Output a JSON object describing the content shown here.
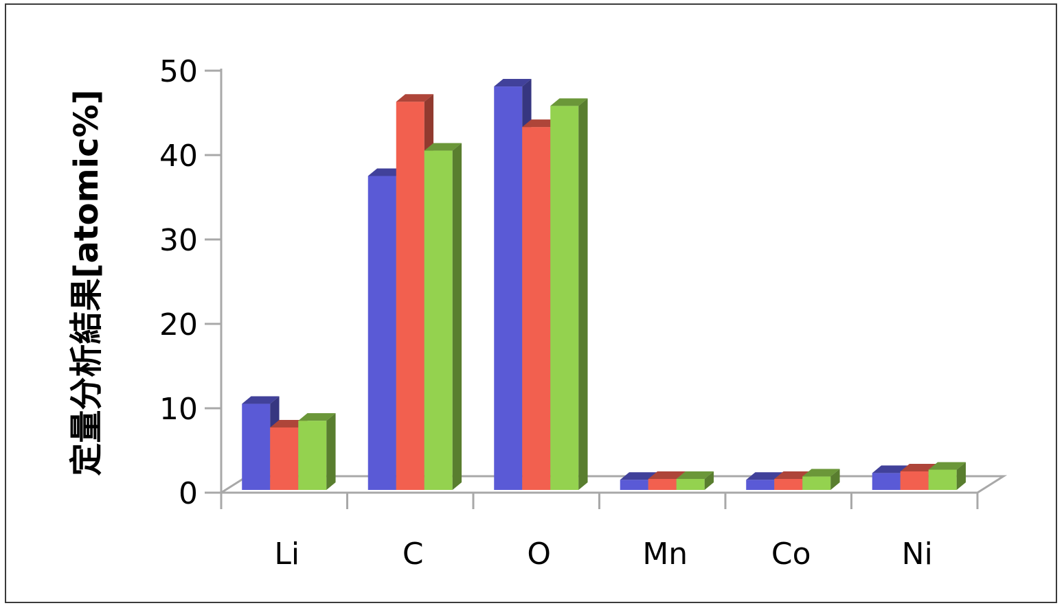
{
  "chart_data": {
    "type": "bar",
    "style": "3d-clustered-column",
    "categories": [
      "Li",
      "C",
      "O",
      "Mn",
      "Co",
      "Ni"
    ],
    "series": [
      {
        "values": [
          10.2,
          37.2,
          47.8,
          1.2,
          1.2,
          2.0
        ],
        "color": "#5a5ad6"
      },
      {
        "values": [
          7.4,
          46.0,
          43.0,
          1.3,
          1.3,
          2.2
        ],
        "color": "#f2604f"
      },
      {
        "values": [
          8.2,
          40.2,
          45.5,
          1.3,
          1.6,
          2.4
        ],
        "color": "#94d24f"
      }
    ],
    "title": "",
    "xlabel": "",
    "ylabel": "定量分析結果[atomic%]",
    "ylim": [
      0,
      50
    ],
    "yticks": [
      0,
      10,
      20,
      30,
      40,
      50
    ],
    "grid": false,
    "legend": "none"
  }
}
